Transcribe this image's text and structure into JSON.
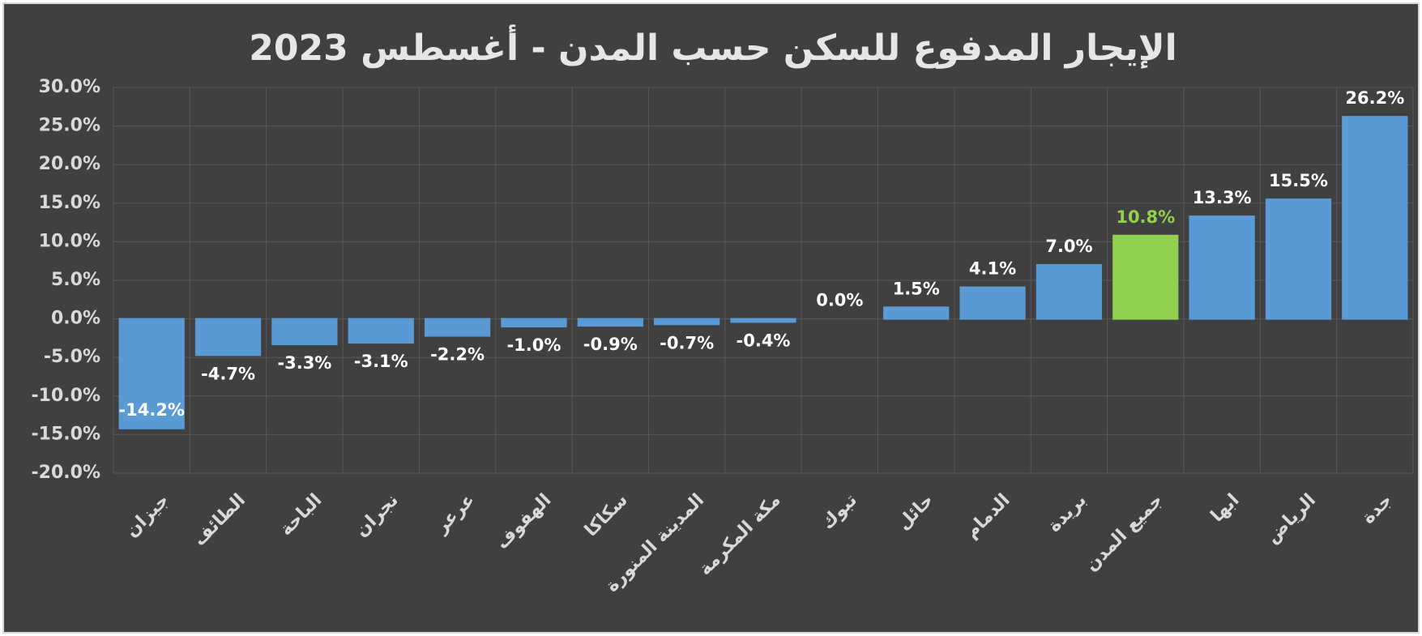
{
  "chart_data": {
    "type": "bar",
    "title": "الإيجار المدفوع للسكن حسب المدن - أغسطس 2023",
    "categories": [
      "جيزان",
      "الطائف",
      "الباحة",
      "نجران",
      "عرعر",
      "الهفوف",
      "سكاكا",
      "المدينة المنورة",
      "مكة المكرمة",
      "تبوك",
      "حائل",
      "الدمام",
      "بريدة",
      "جميع المدن",
      "ابها",
      "الرياض",
      "جدة"
    ],
    "values": [
      -14.2,
      -4.7,
      -3.3,
      -3.1,
      -2.2,
      -1.0,
      -0.9,
      -0.7,
      -0.4,
      0.0,
      1.5,
      4.1,
      7.0,
      10.8,
      13.3,
      15.5,
      26.2
    ],
    "value_labels": [
      "-14.2%",
      "-4.7%",
      "-3.3%",
      "-3.1%",
      "-2.2%",
      "-1.0%",
      "-0.9%",
      "-0.7%",
      "-0.4%",
      "0.0%",
      "1.5%",
      "4.1%",
      "7.0%",
      "10.8%",
      "13.3%",
      "15.5%",
      "26.2%"
    ],
    "color": "#5b9bd5",
    "colors": [
      "#5b9bd5",
      "#5b9bd5",
      "#5b9bd5",
      "#5b9bd5",
      "#5b9bd5",
      "#5b9bd5",
      "#5b9bd5",
      "#5b9bd5",
      "#5b9bd5",
      "#5b9bd5",
      "#5b9bd5",
      "#5b9bd5",
      "#5b9bd5",
      "#92d050",
      "#5b9bd5",
      "#5b9bd5",
      "#5b9bd5"
    ],
    "ylim": [
      -20,
      30
    ],
    "yticks": [
      {
        "value": -20,
        "label": "-20.0%"
      },
      {
        "value": -15,
        "label": "-15.0%"
      },
      {
        "value": -10,
        "label": "-10.0%"
      },
      {
        "value": -5,
        "label": "-5.0%"
      },
      {
        "value": 0,
        "label": "0.0%"
      },
      {
        "value": 5,
        "label": "5.0%"
      },
      {
        "value": 10,
        "label": "10.0%"
      },
      {
        "value": 15,
        "label": "15.0%"
      },
      {
        "value": 20,
        "label": "20.0%"
      },
      {
        "value": 25,
        "label": "25.0%"
      },
      {
        "value": 30,
        "label": "30.0%"
      }
    ],
    "grid": true
  }
}
